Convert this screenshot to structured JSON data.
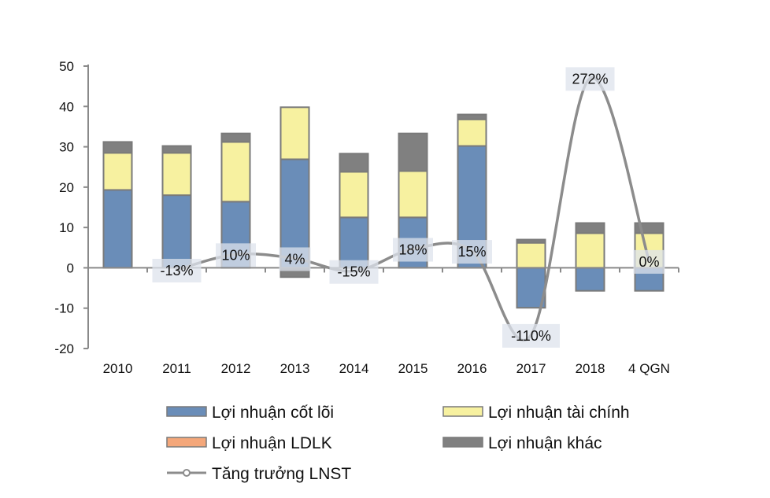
{
  "chart_data": {
    "type": "bar",
    "stacked": true,
    "title": "",
    "xlabel": "",
    "ylabel": "",
    "ylim": [
      -20,
      50
    ],
    "yticks": [
      50,
      40,
      30,
      20,
      10,
      0,
      -10,
      -20
    ],
    "categories": [
      "2010",
      "2011",
      "2012",
      "2013",
      "2014",
      "2015",
      "2016",
      "2017",
      "2018",
      "4 QGN"
    ],
    "series": [
      {
        "name": "Lợi nhuận cốt lõi",
        "color": "#6a8db8",
        "values": [
          19.3,
          18.0,
          16.4,
          26.9,
          12.5,
          12.5,
          30.2,
          -9.9,
          -5.7,
          -5.7
        ]
      },
      {
        "name": "Lợi nhuận tài chính",
        "color": "#f7f1a0",
        "values": [
          9.2,
          10.5,
          14.8,
          12.9,
          11.3,
          11.5,
          6.6,
          6.2,
          8.6,
          8.6
        ]
      },
      {
        "name": "Lợi nhuận LDLK",
        "color": "#f4a77a",
        "values": [
          0,
          0,
          0,
          0,
          0,
          0,
          0,
          0,
          0,
          0
        ]
      },
      {
        "name": "Lợi nhuận khác",
        "color": "#808080",
        "values": [
          2.7,
          1.7,
          2.1,
          -2.3,
          4.5,
          9.3,
          1.2,
          0.8,
          2.5,
          2.5
        ]
      }
    ],
    "line_series": {
      "name": "Tăng trưởng LNST",
      "color": "#8c8c8c",
      "axis": "secondary",
      "ylim": [
        -130,
        290
      ],
      "values": [
        null,
        -13,
        10,
        4,
        -15,
        18,
        15,
        -110,
        272,
        0
      ],
      "labels": [
        "",
        "-13%",
        "10%",
        "4%",
        "-15%",
        "18%",
        "15%",
        "-110%",
        "272%",
        "0%"
      ]
    },
    "legend_placement": "bottom",
    "grid": false
  }
}
